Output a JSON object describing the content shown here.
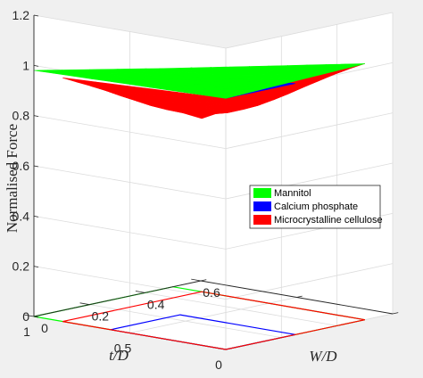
{
  "chart_data": {
    "type": "surface3d",
    "title": "",
    "zlabel": "Normalised Force",
    "xlabel": "W/D",
    "ylabel": "t/D",
    "zlim": [
      0,
      1.2
    ],
    "xlim": [
      0,
      0.6
    ],
    "ylim": [
      0,
      1
    ],
    "z_ticks": [
      "0",
      "0.2",
      "0.4",
      "0.6",
      "0.8",
      "1",
      "1.2"
    ],
    "x_ticks": [
      "0",
      "0.2",
      "0.4",
      "0.6"
    ],
    "y_ticks": [
      "0",
      "0.5",
      "1"
    ],
    "grid": true,
    "legend_position": "center-right",
    "series": [
      {
        "name": "Mannitol",
        "color": "#00ff00",
        "domain_W": [
          0,
          0.5
        ],
        "domain_t": [
          0,
          1
        ],
        "corner_force": {
          "W0_t0": 1.0,
          "W05_t0": 1.02,
          "W0_t1": 0.98,
          "W05_t1": 0.87
        }
      },
      {
        "name": "Calcium phosphate",
        "color": "#0000ff",
        "domain_W": [
          0,
          0.25
        ],
        "domain_t": [
          0,
          0.6
        ],
        "corner_force": {
          "W0_t0": 1.0,
          "W025_t0": 1.0,
          "W0_t06": 1.0,
          "W025_t06": 0.96
        }
      },
      {
        "name": "Microcrystalline cellulose",
        "color": "#ff0000",
        "domain_W": [
          0,
          0.5
        ],
        "domain_t": [
          0,
          0.85
        ],
        "corner_force": {
          "W0_t0": 1.0,
          "W05_t0": 1.02,
          "W0_t085": 0.97,
          "W05_t085": 0.69
        }
      }
    ]
  }
}
